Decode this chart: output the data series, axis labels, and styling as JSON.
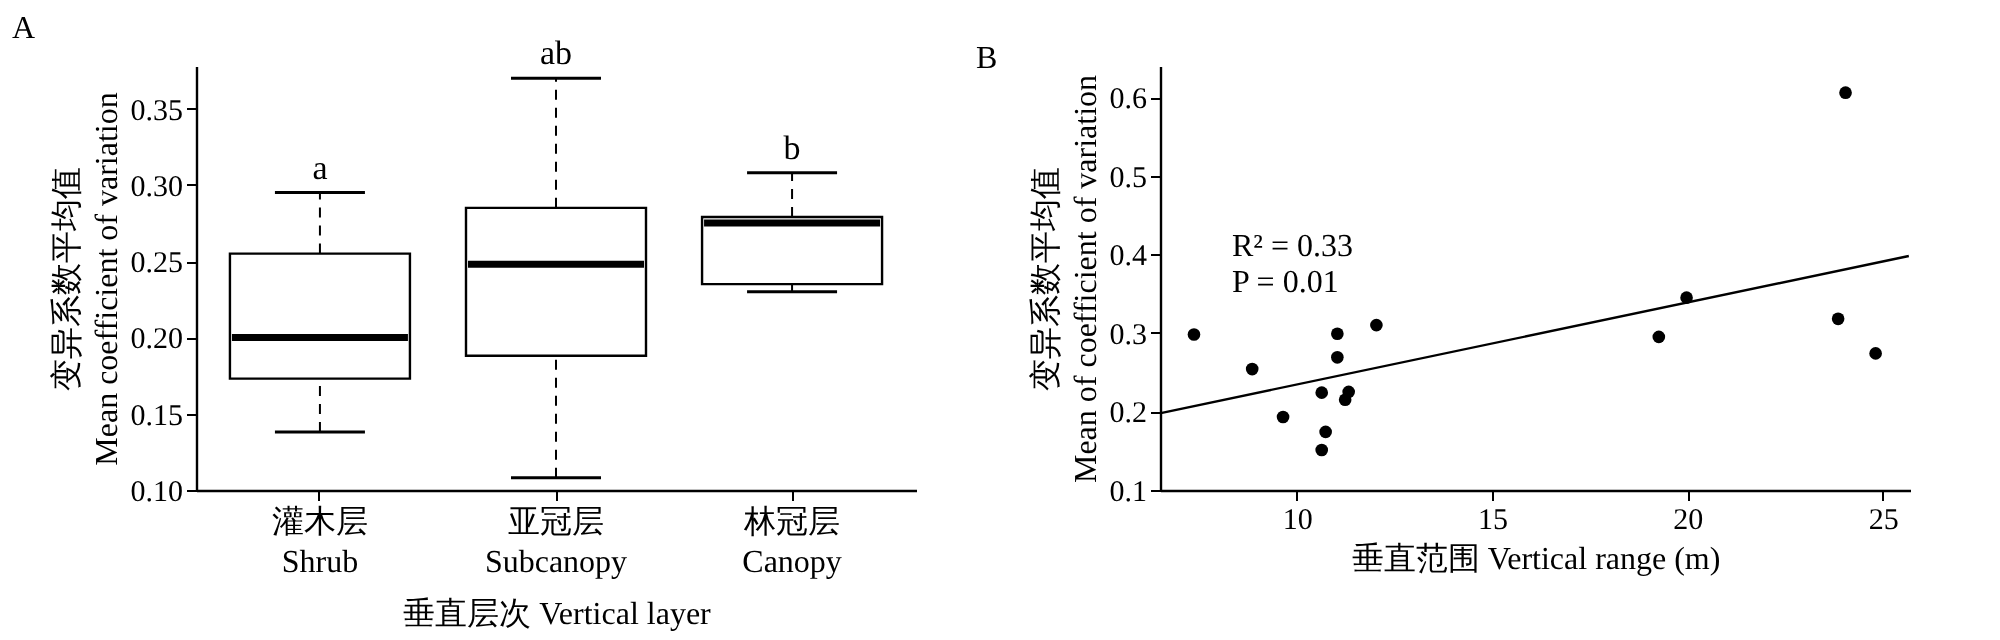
{
  "chart_data": [
    {
      "type": "box",
      "title": "A",
      "xlabel": "垂直层次 Vertical layer",
      "ylabel": "变异系数平均值\nMean coefficient of variation",
      "categories": [
        "灌木层\nShrub",
        "亚冠层\nSubcanopy",
        "林冠层\nCanopy"
      ],
      "boxes": [
        {
          "low": 0.138,
          "q1": 0.173,
          "median": 0.2,
          "q3": 0.255,
          "high": 0.295
        },
        {
          "low": 0.108,
          "q1": 0.188,
          "median": 0.248,
          "q3": 0.285,
          "high": 0.37
        },
        {
          "low": 0.23,
          "q1": 0.235,
          "median": 0.275,
          "q3": 0.279,
          "high": 0.308
        }
      ],
      "ylim": [
        0.1,
        0.378
      ],
      "yticks": [
        {
          "value": 0.1,
          "label": "0.10"
        },
        {
          "value": 0.15,
          "label": "0.15"
        },
        {
          "value": 0.2,
          "label": "0.20"
        },
        {
          "value": 0.25,
          "label": "0.25"
        },
        {
          "value": 0.3,
          "label": "0.30"
        },
        {
          "value": 0.35,
          "label": "0.35"
        }
      ],
      "annotations": [
        {
          "text": "a",
          "x": "灌木层\nShrub",
          "y": 0.295
        },
        {
          "text": "ab",
          "x": "亚冠层\nSubcanopy",
          "y": 0.37
        },
        {
          "text": "b",
          "x": "林冠层\nCanopy",
          "y": 0.308
        }
      ],
      "grid": false
    },
    {
      "type": "scatter",
      "title": "B",
      "xlabel": "垂直范围 Vertical range (m)",
      "ylabel": "变异系数平均值\nMean of coefficient of variation",
      "series": [
        {
          "type": "scatter",
          "color": "#000000",
          "x": [
            7.37,
            8.86,
            9.65,
            10.64,
            10.64,
            10.74,
            11.04,
            11.04,
            11.24,
            11.33,
            12.04,
            19.27,
            19.98,
            23.86,
            24.05,
            24.82
          ],
          "values": [
            0.298,
            0.254,
            0.193,
            0.224,
            0.151,
            0.174,
            0.299,
            0.269,
            0.215,
            0.225,
            0.31,
            0.295,
            0.345,
            0.318,
            0.606,
            0.274
          ]
        },
        {
          "type": "line",
          "color": "#000000",
          "marker": "none",
          "x": [
            6.52,
            25.67
          ],
          "values": [
            0.198,
            0.398
          ]
        }
      ],
      "xlim": [
        6.5,
        25.7
      ],
      "xticks": [
        10,
        15,
        20,
        25
      ],
      "ylim": [
        0.1,
        0.64
      ],
      "yticks": [
        0.1,
        0.2,
        0.3,
        0.4,
        0.5,
        0.6
      ],
      "annotations": [
        "R² = 0.33",
        "P = 0.01"
      ],
      "marker": "circle",
      "grid": false
    }
  ]
}
